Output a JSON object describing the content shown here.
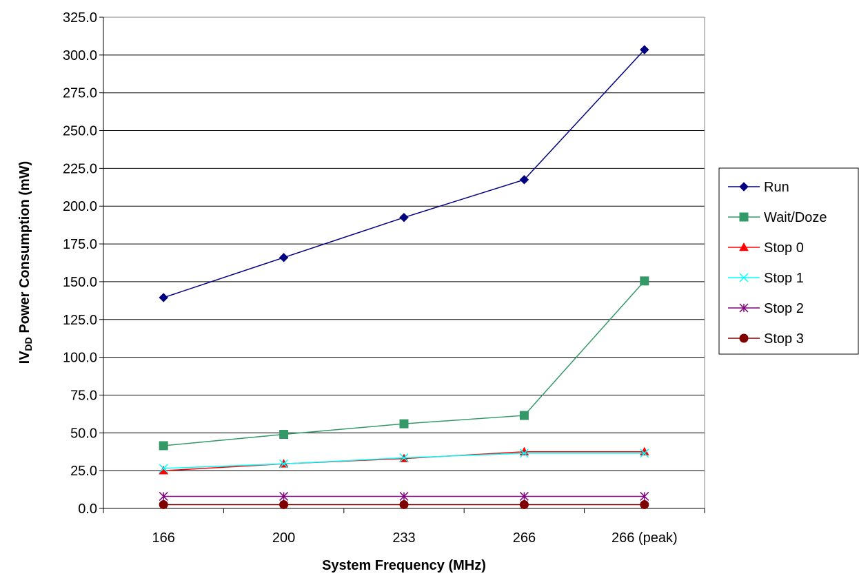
{
  "chart_data": {
    "type": "line",
    "categories": [
      "166",
      "200",
      "233",
      "266",
      "266 (peak)"
    ],
    "xlabel": "System Frequency (MHz)",
    "ylabel": {
      "prefix": "IV",
      "subscript": "DD",
      "suffix": " Power Consumption (mW)"
    },
    "ylim": [
      0,
      325
    ],
    "ystep": 25,
    "grid": true,
    "legend": "right",
    "series": [
      {
        "name": "Run",
        "values": [
          139.5,
          166,
          192.5,
          217.5,
          303.5
        ],
        "color": "#000080",
        "marker": "diamond"
      },
      {
        "name": "Wait/Doze",
        "values": [
          41.5,
          49,
          56,
          61.5,
          150.5
        ],
        "color": "#339966",
        "marker": "square"
      },
      {
        "name": "Stop 0",
        "values": [
          25,
          29.5,
          33,
          37.5,
          37.5
        ],
        "color": "#ff0000",
        "marker": "triangle"
      },
      {
        "name": "Stop 1",
        "values": [
          26.5,
          29.5,
          33.5,
          36.5,
          36.5
        ],
        "color": "#00ffff",
        "marker": "x"
      },
      {
        "name": "Stop 2",
        "values": [
          8,
          8,
          8,
          8,
          8
        ],
        "color": "#800080",
        "marker": "star"
      },
      {
        "name": "Stop 3",
        "values": [
          2.5,
          2.5,
          2.5,
          2.5,
          2.5
        ],
        "color": "#800000",
        "marker": "circle"
      }
    ]
  }
}
